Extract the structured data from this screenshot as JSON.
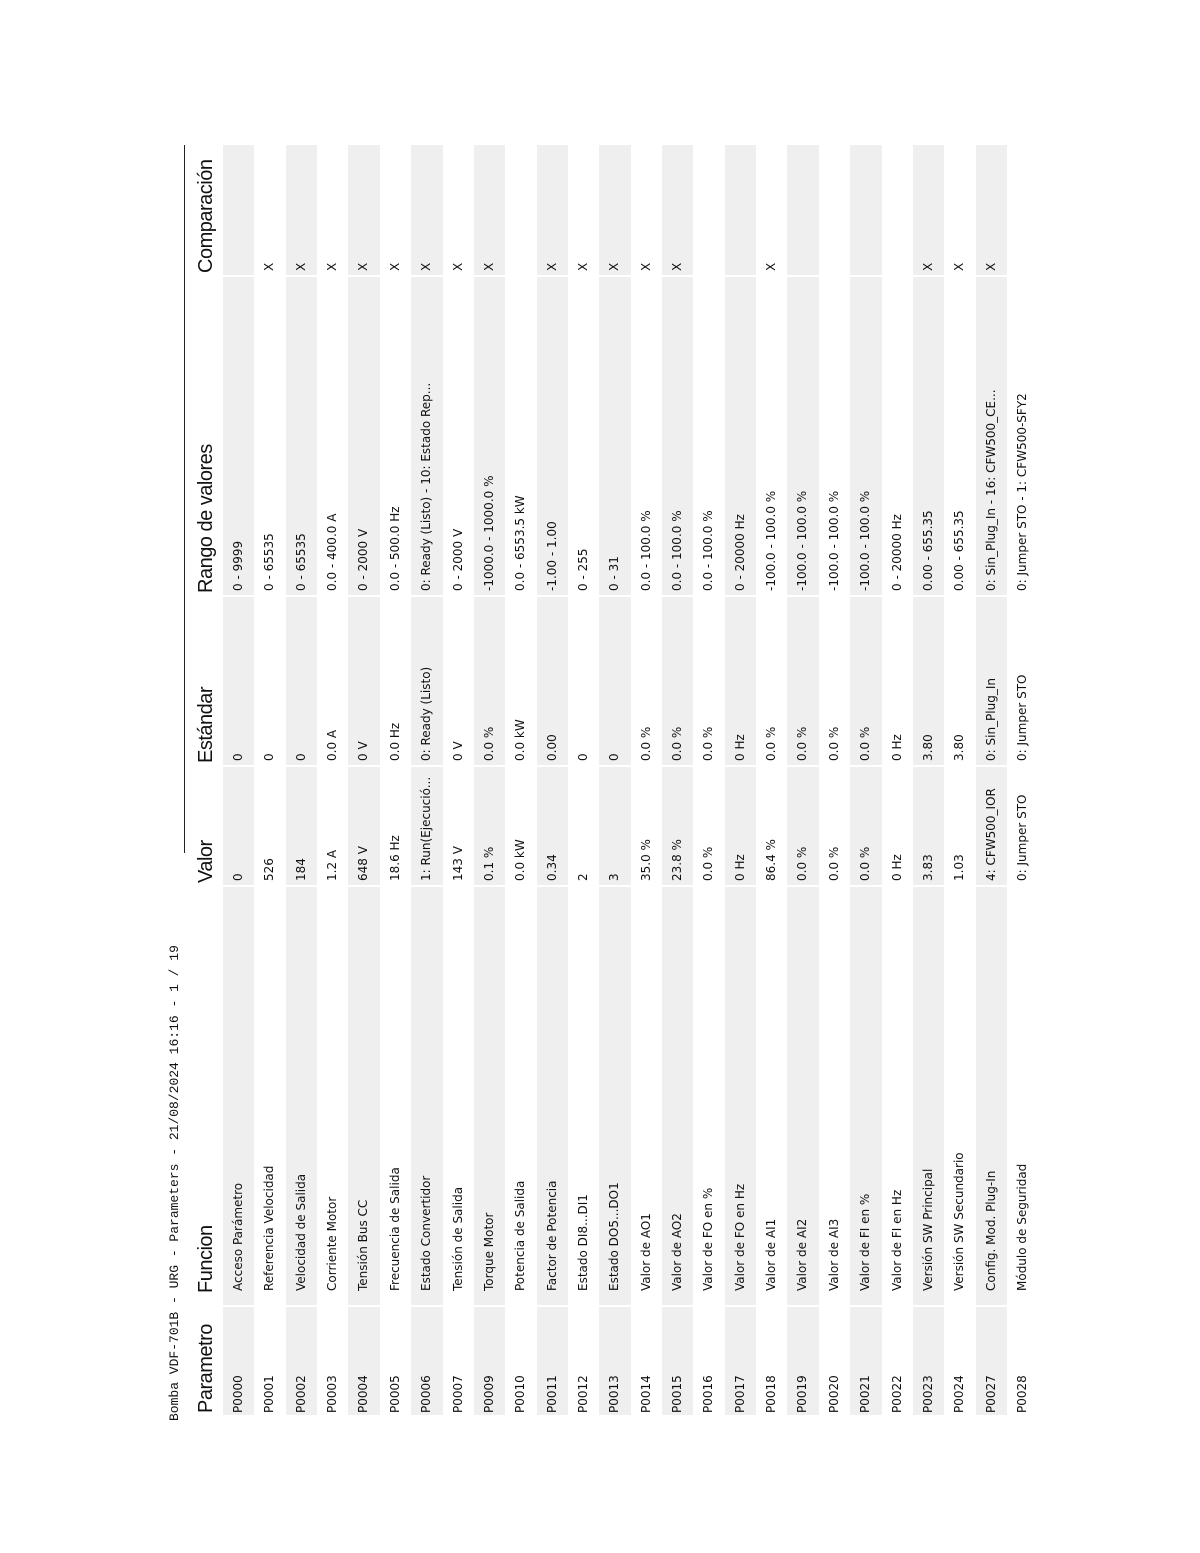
{
  "title": "Bomba VDF-701B - URG - Parameters - 21/08/2024 16:16 - 1 / 19",
  "columns": [
    "Parametro",
    "Funcion",
    "Valor",
    "Estándar",
    "Rango de valores",
    "Comparación"
  ],
  "rows": [
    [
      "P0000",
      "Acceso Parámetro",
      "0",
      "0",
      "0 - 9999",
      ""
    ],
    [
      "P0001",
      "Referencia Velocidad",
      "526",
      "0",
      "0 - 65535",
      "X"
    ],
    [
      "P0002",
      "Velocidad de Salida",
      "184",
      "0",
      "0 - 65535",
      "X"
    ],
    [
      "P0003",
      "Corriente Motor",
      "1.2 A",
      "0.0 A",
      "0.0 - 400.0 A",
      "X"
    ],
    [
      "P0004",
      "Tensión Bus CC",
      "648 V",
      "0 V",
      "0 - 2000 V",
      "X"
    ],
    [
      "P0005",
      "Frecuencia de Salida",
      "18.6 Hz",
      "0.0 Hz",
      "0.0 - 500.0 Hz",
      "X"
    ],
    [
      "P0006",
      "Estado Convertidor",
      "1: Run(Ejecució...",
      "0: Ready (Listo)",
      "0: Ready (Listo) - 10: Estado Rep...",
      "X"
    ],
    [
      "P0007",
      "Tensión de Salida",
      "143 V",
      "0 V",
      "0 - 2000 V",
      "X"
    ],
    [
      "P0009",
      "Torque Motor",
      "0.1 %",
      "0.0 %",
      "-1000.0 - 1000.0 %",
      "X"
    ],
    [
      "P0010",
      "Potencia de Salida",
      "0.0 kW",
      "0.0 kW",
      "0.0 - 6553.5 kW",
      ""
    ],
    [
      "P0011",
      "Factor de Potencia",
      "0.34",
      "0.00",
      "-1.00 - 1.00",
      "X"
    ],
    [
      "P0012",
      "Estado DI8...DI1",
      "2",
      "0",
      "0 - 255",
      "X"
    ],
    [
      "P0013",
      "Estado DO5...DO1",
      "3",
      "0",
      "0 - 31",
      "X"
    ],
    [
      "P0014",
      "Valor de AO1",
      "35.0 %",
      "0.0 %",
      "0.0 - 100.0 %",
      "X"
    ],
    [
      "P0015",
      "Valor de AO2",
      "23.8 %",
      "0.0 %",
      "0.0 - 100.0 %",
      "X"
    ],
    [
      "P0016",
      "Valor de FO en %",
      "0.0 %",
      "0.0 %",
      "0.0 - 100.0 %",
      ""
    ],
    [
      "P0017",
      "Valor de FO en Hz",
      "0 Hz",
      "0 Hz",
      "0 - 20000 Hz",
      ""
    ],
    [
      "P0018",
      "Valor de AI1",
      "86.4 %",
      "0.0 %",
      "-100.0 - 100.0 %",
      "X"
    ],
    [
      "P0019",
      "Valor de AI2",
      "0.0 %",
      "0.0 %",
      "-100.0 - 100.0 %",
      ""
    ],
    [
      "P0020",
      "Valor de AI3",
      "0.0 %",
      "0.0 %",
      "-100.0 - 100.0 %",
      ""
    ],
    [
      "P0021",
      "Valor de FI en %",
      "0.0 %",
      "0.0 %",
      "-100.0 - 100.0 %",
      ""
    ],
    [
      "P0022",
      "Valor de FI en Hz",
      "0 Hz",
      "0 Hz",
      "0 - 20000 Hz",
      ""
    ],
    [
      "P0023",
      "Versión SW Principal",
      "3.83",
      "3.80",
      "0.00 - 655.35",
      "X"
    ],
    [
      "P0024",
      "Versión SW Secundario",
      "1.03",
      "3.80",
      "0.00 - 655.35",
      "X"
    ],
    [
      "P0027",
      "Config. Mod. Plug-In",
      "4: CFW500_IOR",
      "0: Sin_Plug_In",
      "0: Sin_Plug_In - 16: CFW500_CE...",
      "X"
    ],
    [
      "P0028",
      "Módulo de Seguridad",
      "0: Jumper STO",
      "0: Jumper STO",
      "0: Jumper STO - 1: CFW500-SFY2",
      ""
    ]
  ],
  "colors": {
    "stripe": "#efefef",
    "text": "#111111"
  }
}
